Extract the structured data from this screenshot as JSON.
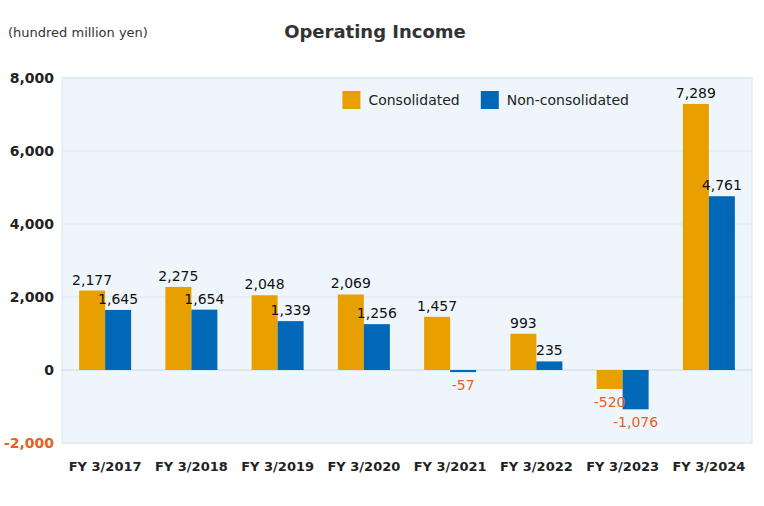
{
  "chart_data": {
    "type": "bar",
    "title": "Operating Income",
    "subtitle": "(hundred million yen)",
    "categories": [
      "FY 3/2017",
      "FY 3/2018",
      "FY 3/2019",
      "FY 3/2020",
      "FY 3/2021",
      "FY 3/2022",
      "FY 3/2023",
      "FY 3/2024"
    ],
    "series": [
      {
        "name": "Consolidated",
        "color": "#e8a000",
        "values": [
          2177,
          2275,
          2048,
          2069,
          1457,
          993,
          -520,
          7289
        ],
        "value_labels": [
          "2,177",
          "2,275",
          "2,048",
          "2,069",
          "1,457",
          "993",
          "-520",
          "7,289"
        ]
      },
      {
        "name": "Non-consolidated",
        "color": "#0068b7",
        "values": [
          1645,
          1654,
          1339,
          1256,
          -57,
          235,
          -1076,
          4761
        ],
        "value_labels": [
          "1,645",
          "1,654",
          "1,339",
          "1,256",
          "-57",
          "235",
          "-1,076",
          "4,761"
        ]
      }
    ],
    "ylim": [
      -2000,
      8000
    ],
    "yticks": [
      {
        "value": -2000,
        "label": "-2,000"
      },
      0,
      {
        "value": 2000,
        "label": "2,000"
      },
      {
        "value": 4000,
        "label": "4,000"
      },
      {
        "value": 6000,
        "label": "6,000"
      },
      {
        "value": 8000,
        "label": "8,000"
      }
    ],
    "grid": true,
    "legend": "top-right",
    "data_labels": true
  }
}
